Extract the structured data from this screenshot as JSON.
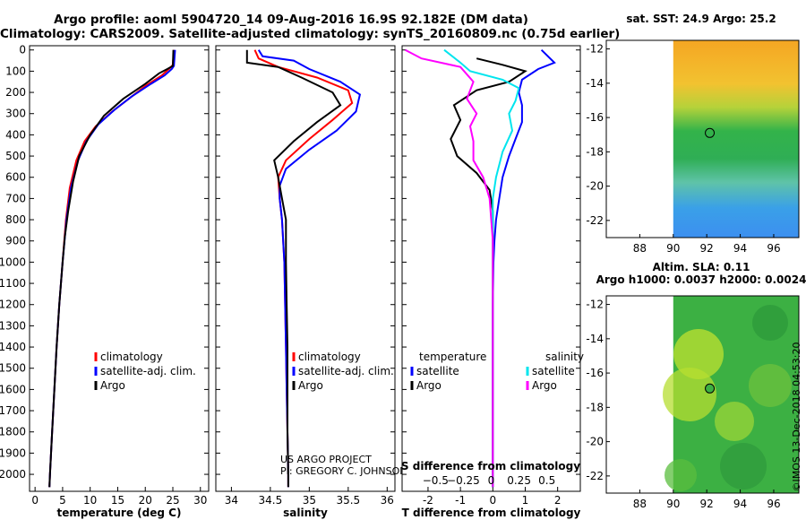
{
  "header": {
    "line1": "Argo profile: aoml 5904720_14 09-Aug-2016 16.9S 92.182E (DM data)",
    "line2": "Climatology: CARS2009. Satellite-adjusted climatology: synTS_20160809.nc (0.75d earlier)"
  },
  "colors": {
    "climatology": "#ff0000",
    "satellite": "#0000ff",
    "argo": "#000000",
    "sat_salinity": "#00e5ee",
    "clim_salinity": "#ff00ff"
  },
  "depth_axis": {
    "ticks": [
      0,
      100,
      200,
      300,
      400,
      500,
      600,
      700,
      800,
      900,
      1000,
      1100,
      1200,
      1300,
      1400,
      1500,
      1600,
      1700,
      1800,
      1900,
      2000
    ]
  },
  "chart_data": [
    {
      "type": "line",
      "id": "temperature",
      "xlabel": "temperature (deg C)",
      "xlim": [
        -1,
        31.5
      ],
      "ylim": [
        2080,
        -20
      ],
      "xticks": [
        0,
        5,
        10,
        15,
        20,
        25,
        30
      ],
      "legend": [
        "climatology",
        "satellite-adj. clim.",
        "Argo"
      ],
      "series": [
        {
          "name": "climatology",
          "color": "#ff0000",
          "points": [
            [
              25.2,
              0
            ],
            [
              25,
              70
            ],
            [
              24.5,
              85
            ],
            [
              23,
              120
            ],
            [
              20,
              170
            ],
            [
              17,
              230
            ],
            [
              14,
              290
            ],
            [
              11,
              360
            ],
            [
              9,
              430
            ],
            [
              7.5,
              520
            ],
            [
              6.3,
              650
            ],
            [
              5.6,
              800
            ],
            [
              5,
              1000
            ],
            [
              4.4,
              1200
            ],
            [
              3.9,
              1400
            ],
            [
              3.5,
              1600
            ],
            [
              3.1,
              1800
            ],
            [
              2.7,
              2000
            ],
            [
              2.6,
              2060
            ]
          ]
        },
        {
          "name": "satellite-adj. clim.",
          "color": "#0000ff",
          "points": [
            [
              25.4,
              0
            ],
            [
              25.2,
              75
            ],
            [
              24.8,
              90
            ],
            [
              23.5,
              120
            ],
            [
              21,
              160
            ],
            [
              17.5,
              220
            ],
            [
              14.5,
              280
            ],
            [
              11.5,
              350
            ],
            [
              9.3,
              430
            ],
            [
              7.8,
              520
            ],
            [
              6.5,
              650
            ],
            [
              5.7,
              800
            ],
            [
              5,
              1000
            ],
            [
              4.4,
              1200
            ],
            [
              3.9,
              1400
            ],
            [
              3.5,
              1600
            ],
            [
              3.1,
              1800
            ],
            [
              2.7,
              2000
            ],
            [
              2.6,
              2060
            ]
          ]
        },
        {
          "name": "Argo",
          "color": "#000000",
          "points": [
            [
              25.1,
              0
            ],
            [
              25,
              75
            ],
            [
              24,
              90
            ],
            [
              22.5,
              110
            ],
            [
              20,
              160
            ],
            [
              16,
              230
            ],
            [
              12.5,
              310
            ],
            [
              10,
              400
            ],
            [
              8,
              500
            ],
            [
              6.9,
              620
            ],
            [
              6,
              760
            ],
            [
              5.4,
              880
            ],
            [
              5,
              1000
            ],
            [
              4.4,
              1200
            ],
            [
              3.9,
              1400
            ],
            [
              3.5,
              1600
            ],
            [
              3.1,
              1800
            ],
            [
              2.7,
              2000
            ],
            [
              2.6,
              2060
            ]
          ]
        }
      ]
    },
    {
      "type": "line",
      "id": "salinity",
      "xlabel": "salinity",
      "xlim": [
        33.8,
        36.1
      ],
      "ylim": [
        2080,
        -20
      ],
      "xticks": [
        34,
        34.5,
        35,
        35.5,
        36
      ],
      "legend": [
        "climatology",
        "satellite-adj. clim."
      ],
      "legend_extra": "Argo",
      "footer": [
        "US ARGO PROJECT",
        "PI: GREGORY C. JOHNSON"
      ],
      "series": [
        {
          "name": "climatology",
          "color": "#ff0000",
          "points": [
            [
              34.3,
              0
            ],
            [
              34.35,
              40
            ],
            [
              34.6,
              80
            ],
            [
              35.1,
              130
            ],
            [
              35.5,
              190
            ],
            [
              35.55,
              250
            ],
            [
              35.3,
              330
            ],
            [
              35.0,
              420
            ],
            [
              34.7,
              520
            ],
            [
              34.6,
              600
            ],
            [
              34.62,
              700
            ],
            [
              34.65,
              800
            ],
            [
              34.68,
              1000
            ],
            [
              34.69,
              1200
            ],
            [
              34.7,
              1400
            ],
            [
              34.71,
              1600
            ],
            [
              34.72,
              1800
            ],
            [
              34.73,
              2000
            ],
            [
              34.73,
              2060
            ]
          ]
        },
        {
          "name": "satellite-adj. clim.",
          "color": "#0000ff",
          "points": [
            [
              34.35,
              0
            ],
            [
              34.4,
              30
            ],
            [
              34.8,
              50
            ],
            [
              35.0,
              90
            ],
            [
              35.4,
              150
            ],
            [
              35.65,
              210
            ],
            [
              35.6,
              290
            ],
            [
              35.35,
              380
            ],
            [
              35.0,
              470
            ],
            [
              34.7,
              560
            ],
            [
              34.62,
              640
            ],
            [
              34.62,
              700
            ],
            [
              34.65,
              800
            ],
            [
              34.68,
              1000
            ],
            [
              34.69,
              1200
            ],
            [
              34.7,
              1400
            ],
            [
              34.71,
              1600
            ],
            [
              34.72,
              1800
            ],
            [
              34.73,
              2000
            ],
            [
              34.73,
              2060
            ]
          ]
        },
        {
          "name": "Argo",
          "color": "#000000",
          "points": [
            [
              34.2,
              0
            ],
            [
              34.2,
              60
            ],
            [
              34.6,
              80
            ],
            [
              34.9,
              130
            ],
            [
              35.3,
              200
            ],
            [
              35.4,
              260
            ],
            [
              35.1,
              340
            ],
            [
              34.8,
              430
            ],
            [
              34.55,
              520
            ],
            [
              34.6,
              600
            ],
            [
              34.65,
              700
            ],
            [
              34.7,
              800
            ],
            [
              34.7,
              1000
            ],
            [
              34.71,
              1200
            ],
            [
              34.72,
              1400
            ],
            [
              34.72,
              1600
            ],
            [
              34.72,
              1800
            ],
            [
              34.73,
              2000
            ],
            [
              34.73,
              2060
            ]
          ]
        }
      ]
    },
    {
      "type": "line",
      "id": "differences",
      "xlabel": "T difference from climatology",
      "xlabel_top": "S difference from climatology",
      "xlim": [
        -2.8,
        2.7
      ],
      "ylim": [
        2080,
        -20
      ],
      "xticks": [
        -2,
        -1,
        0,
        1,
        2
      ],
      "sticks": [
        {
          "value": -0.5,
          "label": "−0.5"
        },
        {
          "value": -0.25,
          "label": "−0.25"
        },
        {
          "value": 0,
          "label": "0"
        },
        {
          "value": 0.25,
          "label": "0.25"
        },
        {
          "value": 0.5,
          "label": "0.5"
        }
      ],
      "legend_left": {
        "title": "temperature",
        "items": [
          "satellite",
          "Argo"
        ]
      },
      "legend_right": {
        "title": "salinity",
        "items": [
          "satellite",
          "Argo"
        ]
      },
      "series": [
        {
          "name": "T satellite",
          "color": "#0000ff",
          "points": [
            [
              1.5,
              0
            ],
            [
              1.9,
              60
            ],
            [
              1.4,
              90
            ],
            [
              0.9,
              140
            ],
            [
              0.8,
              200
            ],
            [
              0.9,
              260
            ],
            [
              0.9,
              340
            ],
            [
              0.7,
              420
            ],
            [
              0.5,
              500
            ],
            [
              0.3,
              600
            ],
            [
              0.2,
              700
            ],
            [
              0.1,
              800
            ],
            [
              0.05,
              900
            ],
            [
              0.02,
              1000
            ],
            [
              0,
              1200
            ],
            [
              0,
              1600
            ],
            [
              0,
              2000
            ],
            [
              0,
              2060
            ]
          ]
        },
        {
          "name": "T Argo",
          "color": "#000000",
          "points": [
            [
              -0.5,
              40
            ],
            [
              0.3,
              70
            ],
            [
              1.0,
              100
            ],
            [
              0.5,
              150
            ],
            [
              -0.5,
              190
            ],
            [
              -1.2,
              260
            ],
            [
              -1.0,
              330
            ],
            [
              -1.3,
              420
            ],
            [
              -1.1,
              500
            ],
            [
              -0.5,
              580
            ],
            [
              -0.1,
              660
            ],
            [
              0,
              760
            ],
            [
              0,
              900
            ],
            [
              0,
              1200
            ],
            [
              0,
              1600
            ],
            [
              0,
              2000
            ],
            [
              0,
              2060
            ]
          ]
        },
        {
          "name": "S satellite",
          "color": "#00e5ee",
          "points": [
            [
              -1.5,
              0
            ],
            [
              -1.0,
              60
            ],
            [
              -0.7,
              100
            ],
            [
              0.3,
              140
            ],
            [
              0.8,
              180
            ],
            [
              0.7,
              240
            ],
            [
              0.5,
              300
            ],
            [
              0.6,
              380
            ],
            [
              0.3,
              480
            ],
            [
              0.1,
              600
            ],
            [
              0,
              700
            ],
            [
              0,
              900
            ],
            [
              0,
              1200
            ],
            [
              0,
              1600
            ],
            [
              0,
              2000
            ],
            [
              0,
              2060
            ]
          ]
        },
        {
          "name": "S Argo",
          "color": "#ff00ff",
          "points": [
            [
              -2.7,
              0
            ],
            [
              -2.2,
              40
            ],
            [
              -1.0,
              80
            ],
            [
              -0.6,
              150
            ],
            [
              -0.8,
              230
            ],
            [
              -0.5,
              300
            ],
            [
              -0.7,
              360
            ],
            [
              -0.6,
              430
            ],
            [
              -0.6,
              520
            ],
            [
              -0.3,
              600
            ],
            [
              -0.1,
              700
            ],
            [
              0,
              900
            ],
            [
              0,
              1200
            ],
            [
              0,
              1600
            ],
            [
              0,
              2000
            ],
            [
              0,
              2060
            ]
          ]
        }
      ]
    },
    {
      "type": "heatmap",
      "id": "sst_map",
      "title": "sat. SST: 24.9 Argo: 25.2",
      "xlim": [
        86,
        97.5
      ],
      "ylim": [
        -23,
        -11.5
      ],
      "xticks": [
        88,
        90,
        92,
        94,
        96
      ],
      "yticks": [
        -12,
        -14,
        -16,
        -18,
        -20,
        -22
      ],
      "data_x_start": 90,
      "float_position": [
        92.18,
        -16.9
      ]
    },
    {
      "type": "heatmap",
      "id": "sla_map",
      "title": "Altim. SLA: 0.11",
      "subtitle": "Argo h1000: 0.0037 h2000: 0.0024",
      "xlim": [
        86,
        97.5
      ],
      "ylim": [
        -23,
        -11.5
      ],
      "xticks": [
        88,
        90,
        92,
        94,
        96
      ],
      "yticks": [
        -12,
        -14,
        -16,
        -18,
        -20,
        -22
      ],
      "data_x_start": 90,
      "float_position": [
        92.18,
        -16.9
      ]
    }
  ],
  "footer": {
    "credit": "©IMOS 13-Dec-2018 04:53:20"
  }
}
